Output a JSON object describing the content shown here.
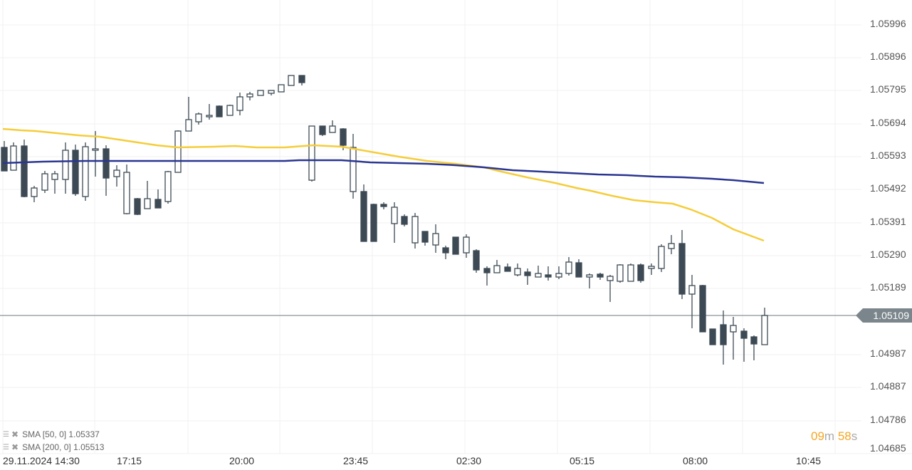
{
  "chart_data": {
    "type": "candlestick",
    "title": "",
    "ylabel": "",
    "xlabel": "",
    "ylim": [
      1.04685,
      1.05996
    ],
    "y_ticks": [
      "1.05996",
      "1.05896",
      "1.05795",
      "1.05694",
      "1.05593",
      "1.05492",
      "1.05391",
      "1.05290",
      "1.05189",
      "1.05109",
      "1.04987",
      "1.04887",
      "1.04786",
      "1.04685"
    ],
    "x_ticks": [
      "29.11.2024  14:30",
      "17:15",
      "20:00",
      "23:45",
      "02:30",
      "05:15",
      "08:00",
      "10:45"
    ],
    "current_price": "1.05109",
    "series": [
      {
        "name": "SMA [50, 0]",
        "value": "1.05337",
        "color": "#f5cd3a"
      },
      {
        "name": "SMA [200, 0]",
        "value": "1.05513",
        "color": "#2a3591"
      }
    ],
    "grid": true,
    "candles_note": "OHLC approx in pixel-price space; approx 70 candles from 14:30 to ~09:45"
  },
  "legend": {
    "sma50": "SMA [50, 0] 1.05337",
    "sma200": "SMA [200, 0] 1.05513"
  },
  "axis": {
    "y": [
      "1.05996",
      "1.05896",
      "1.05795",
      "1.05694",
      "1.05593",
      "1.05492",
      "1.05391",
      "1.05290",
      "1.05189",
      "1.05109",
      "1.04987",
      "1.04887",
      "1.04786",
      "1.04685"
    ],
    "x": [
      "29.11.2024  14:30",
      "17:15",
      "20:00",
      "23:45",
      "02:30",
      "05:15",
      "08:00",
      "10:45"
    ]
  },
  "price_tag": "1.05109",
  "timer": {
    "min": "09",
    "min_unit": "m",
    "sec": "58",
    "sec_unit": "s"
  },
  "colors": {
    "bear": "#3d4a55",
    "bull_fill": "#ffffff",
    "sma50": "#f5cd3a",
    "sma200": "#2a3591",
    "price_line": "#7b868c"
  }
}
